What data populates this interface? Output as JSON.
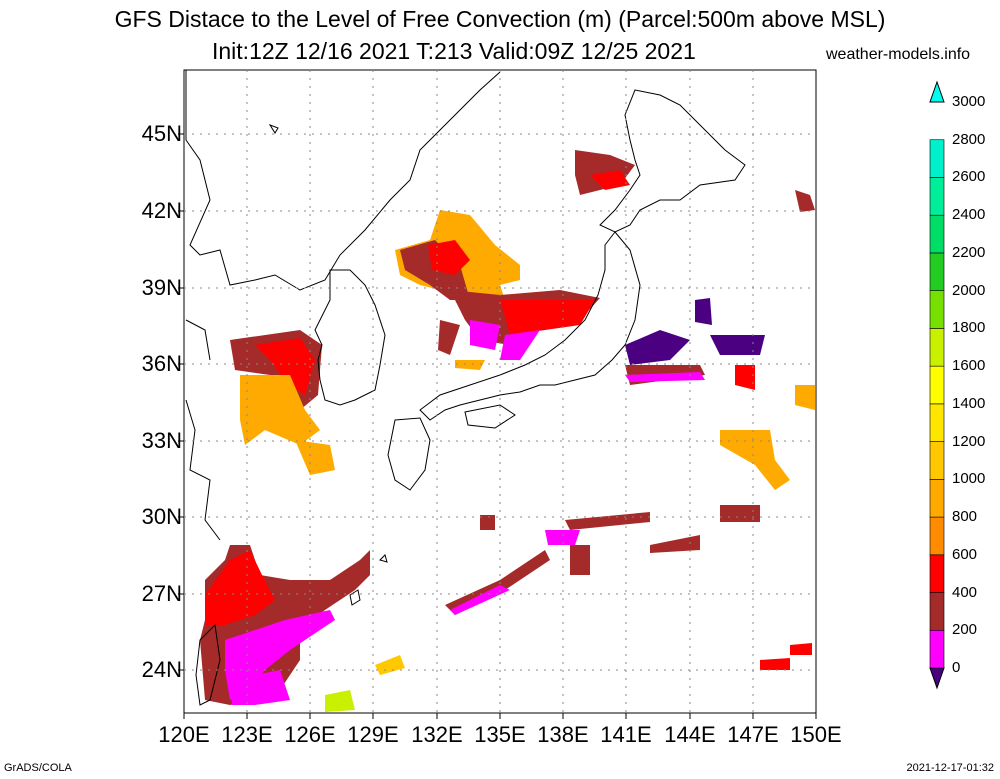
{
  "title": "GFS Distace to the Level of Free Convection (m) (Parcel:500m above MSL)",
  "subtitle": "Init:12Z 12/16 2021 T:213 Valid:09Z 12/25 2021",
  "site": "weather-models.info",
  "footer_left": "GrADS/COLA",
  "footer_right": "2021-12-17-01:32",
  "lat_labels": [
    "45N",
    "42N",
    "39N",
    "36N",
    "33N",
    "30N",
    "27N",
    "24N"
  ],
  "lon_labels": [
    "120E",
    "123E",
    "126E",
    "129E",
    "132E",
    "135E",
    "138E",
    "141E",
    "144E",
    "147E",
    "150E"
  ],
  "colorbar": {
    "levels": [
      "0",
      "200",
      "400",
      "600",
      "800",
      "1000",
      "1200",
      "1400",
      "1600",
      "1800",
      "2000",
      "2200",
      "2400",
      "2600",
      "2800",
      "3000"
    ],
    "colors": [
      "#4b0082",
      "#ff00ff",
      "#a52a2a",
      "#ff0000",
      "#ff8c00",
      "#ffaa00",
      "#ffc800",
      "#ffe600",
      "#ffff00",
      "#c8f000",
      "#78e000",
      "#22cc22",
      "#00dd66",
      "#00ee99",
      "#00f0cc",
      "#00ffee"
    ]
  }
}
